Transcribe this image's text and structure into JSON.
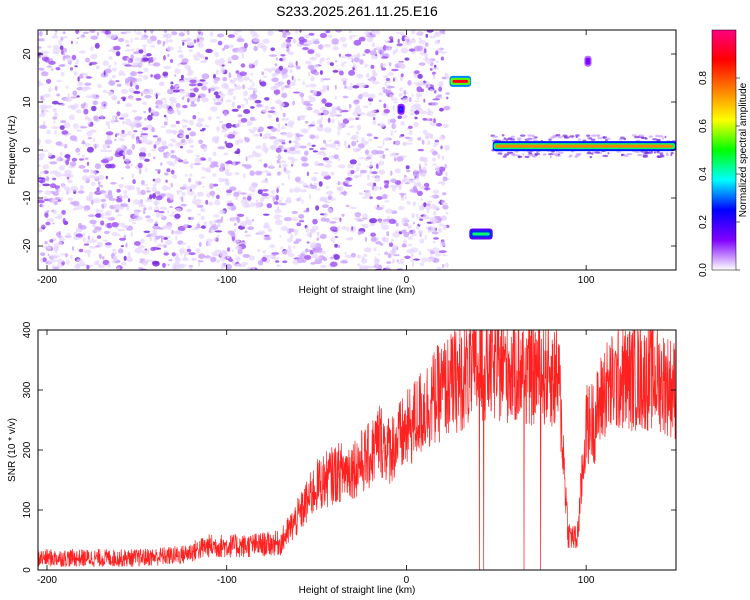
{
  "title": "S233.2025.261.11.25.E16",
  "chart_data": [
    {
      "type": "heatmap",
      "xlabel": "Height of straight line (km)",
      "ylabel": "Frequency (Hz)",
      "xlim": [
        -205,
        150
      ],
      "ylim": [
        -25,
        25
      ],
      "x_ticks": [
        -200,
        -100,
        0,
        100
      ],
      "y_ticks": [
        -20,
        -10,
        0,
        10,
        20
      ],
      "colorbar": {
        "label": "Normalized spectral amplitude",
        "range": [
          0,
          1
        ],
        "ticks": [
          "0.0",
          "0.2",
          "0.4",
          "0.6",
          "0.8"
        ],
        "colormap": [
          "#ffffff",
          "#8000ff",
          "#0000ff",
          "#00ffff",
          "#00ff00",
          "#ffff00",
          "#ff8000",
          "#ff0000",
          "#ff0080"
        ]
      },
      "noise_region": {
        "x": [
          -205,
          23
        ],
        "amplitude": 0.15
      },
      "features": [
        {
          "label": "tone",
          "x": [
            24,
            36
          ],
          "y": 14.3,
          "amplitude": 0.9
        },
        {
          "label": "tone",
          "x": [
            35,
            48
          ],
          "y": -17.5,
          "amplitude": 0.45
        },
        {
          "label": "carrier",
          "x": [
            48,
            150
          ],
          "y": 0.8,
          "amplitude": 0.75
        },
        {
          "label": "blip",
          "x": [
            -5,
            -1
          ],
          "y": 8.5,
          "amplitude": 0.3
        },
        {
          "label": "blip",
          "x": [
            99,
            103
          ],
          "y": 18.5,
          "amplitude": 0.2
        }
      ]
    },
    {
      "type": "line",
      "xlabel": "Height of straight line (km)",
      "ylabel": "SNR (10 * v/v)",
      "xlim": [
        -205,
        150
      ],
      "ylim": [
        0,
        400
      ],
      "x_ticks": [
        -200,
        -100,
        0,
        100
      ],
      "y_ticks": [
        0,
        100,
        200,
        300,
        400
      ],
      "color": "#ff2020",
      "series": [
        {
          "x": [
            -205,
            -180,
            -150,
            -125,
            -110,
            -90,
            -70,
            -60,
            -50,
            -40,
            -30,
            -20,
            -15,
            -10,
            0,
            10,
            20,
            30,
            40,
            50,
            60,
            70,
            80,
            85,
            90,
            95,
            100,
            105,
            110,
            120,
            130,
            140,
            150
          ],
          "values": [
            20,
            20,
            20,
            25,
            40,
            40,
            45,
            90,
            140,
            160,
            170,
            190,
            220,
            200,
            230,
            270,
            300,
            320,
            335,
            340,
            335,
            330,
            330,
            310,
            60,
            50,
            240,
            250,
            300,
            320,
            320,
            320,
            300
          ]
        }
      ]
    }
  ]
}
